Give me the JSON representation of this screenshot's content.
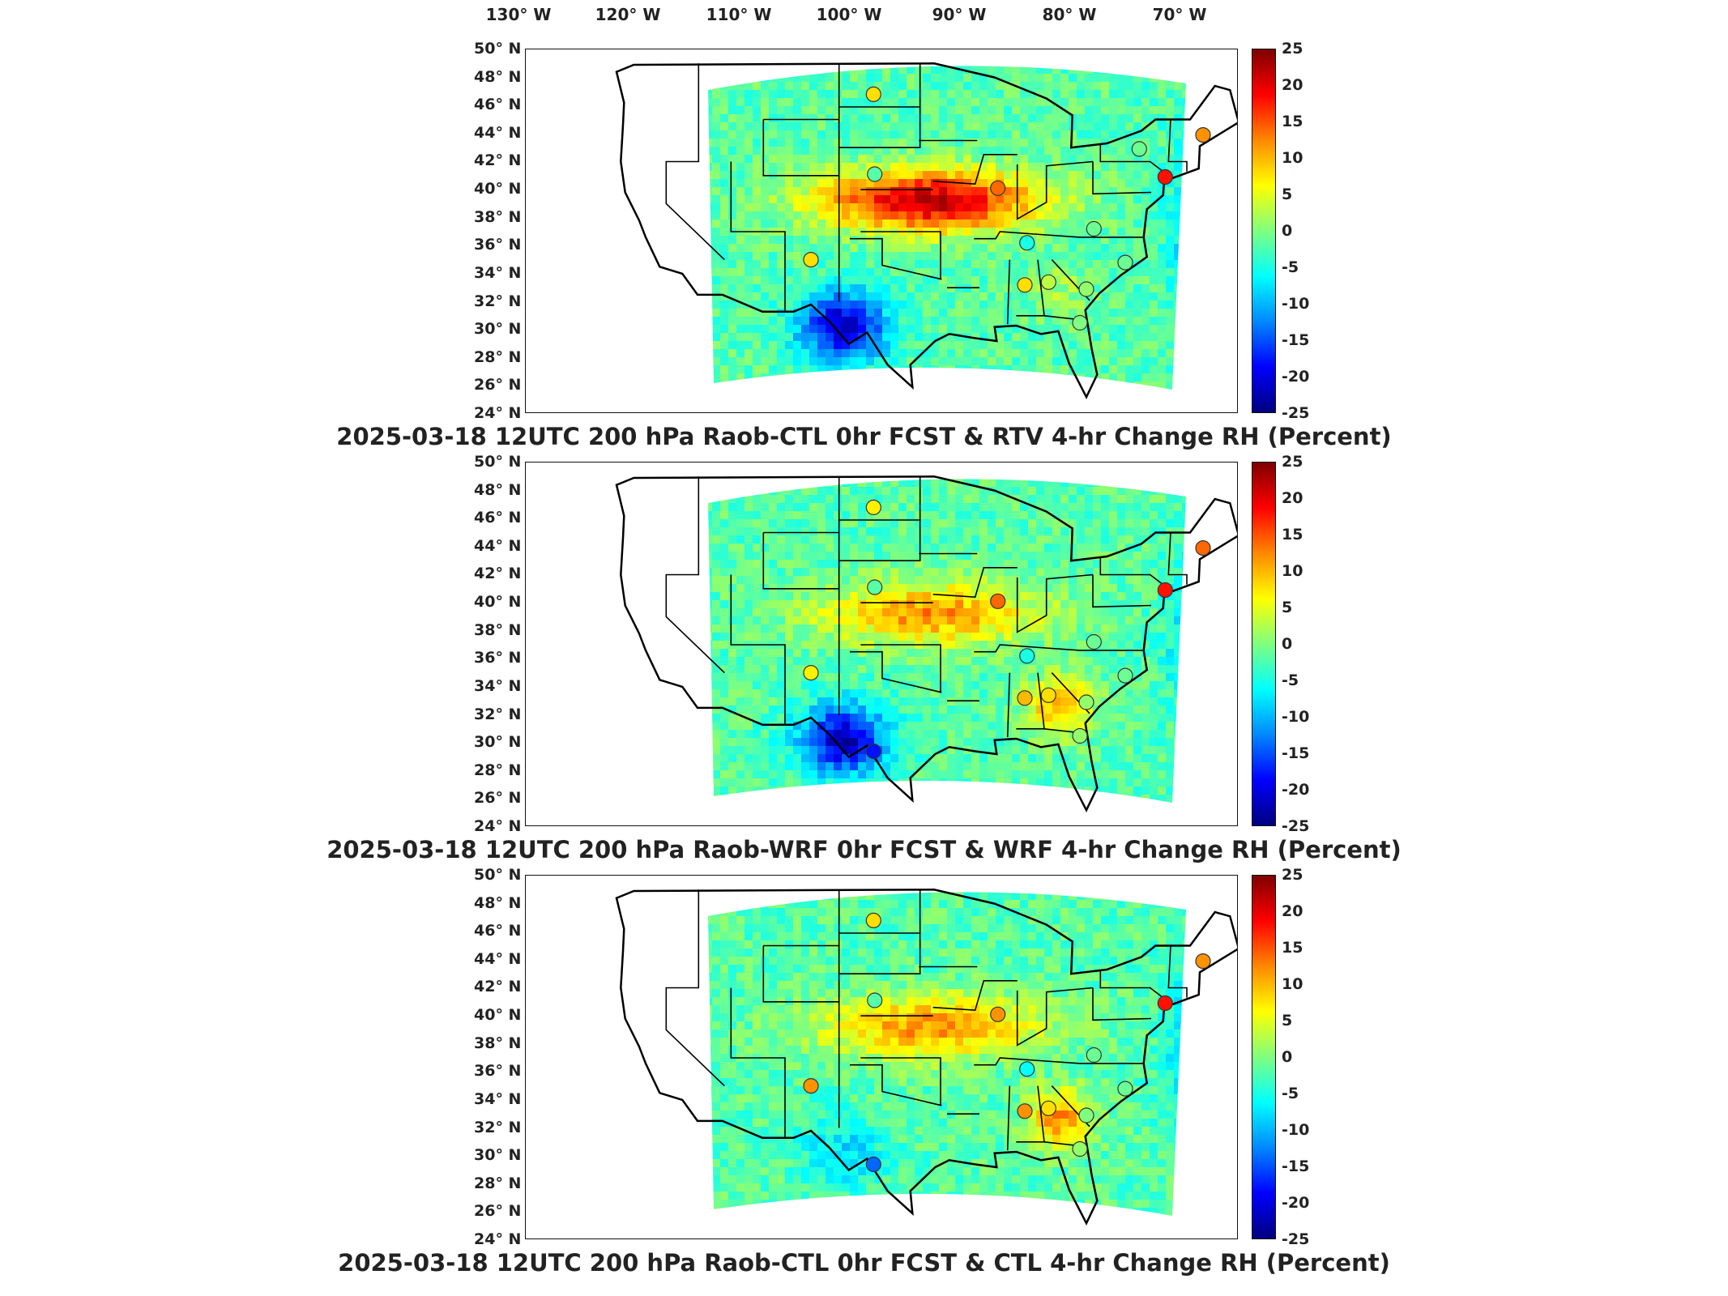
{
  "lon_ticks": [
    "130° W",
    "120° W",
    "110° W",
    "100° W",
    "90° W",
    "80° W",
    "70° W"
  ],
  "lat_ticks": [
    "50° N",
    "48° N",
    "46° N",
    "44° N",
    "42° N",
    "40° N",
    "38° N",
    "36° N",
    "34° N",
    "32° N",
    "30° N",
    "28° N",
    "26° N",
    "24° N"
  ],
  "colorbar_ticks": [
    "25",
    "20",
    "15",
    "10",
    "5",
    "0",
    "-5",
    "-10",
    "-15",
    "-20",
    "-25"
  ],
  "colors": {
    "positive_max": "#7f0000",
    "zero": "#7fff7f",
    "negative_max": "#00007f",
    "border": "#111111",
    "title": "#222222"
  },
  "chart_data": [
    {
      "type": "heatmap",
      "title": "2025-03-18 12UTC 200 hPa Raob-CTL 0hr FCST & RTV 4-hr Change RH (Percent)",
      "colorbar_range": [
        -25,
        25
      ],
      "x_axis": "longitude",
      "y_axis": "latitude",
      "xlim": [
        -133,
        -67
      ],
      "ylim": [
        24,
        50
      ],
      "stations": [
        {
          "lon": -100.8,
          "lat": 46.8,
          "value": 8
        },
        {
          "lon": -100.7,
          "lat": 41.1,
          "value": -2
        },
        {
          "lon": -89.3,
          "lat": 40.1,
          "value": 14
        },
        {
          "lon": -106.6,
          "lat": 35.0,
          "value": 8
        },
        {
          "lon": -86.6,
          "lat": 36.2,
          "value": -5
        },
        {
          "lon": -86.8,
          "lat": 33.2,
          "value": 8
        },
        {
          "lon": -84.6,
          "lat": 33.4,
          "value": 3
        },
        {
          "lon": -80.4,
          "lat": 37.2,
          "value": -1
        },
        {
          "lon": -81.1,
          "lat": 32.9,
          "value": 1
        },
        {
          "lon": -77.5,
          "lat": 34.8,
          "value": -1
        },
        {
          "lon": -81.7,
          "lat": 30.5,
          "value": 0
        },
        {
          "lon": -70.3,
          "lat": 43.9,
          "value": 12
        },
        {
          "lon": -73.8,
          "lat": 40.9,
          "value": 18
        },
        {
          "lon": -76.2,
          "lat": 42.9,
          "value": -1
        }
      ]
    },
    {
      "type": "heatmap",
      "title": "2025-03-18 12UTC 200 hPa Raob-WRF 0hr FCST & WRF 4-hr Change RH (Percent)",
      "colorbar_range": [
        -25,
        25
      ],
      "x_axis": "longitude",
      "y_axis": "latitude",
      "xlim": [
        -133,
        -67
      ],
      "ylim": [
        24,
        50
      ],
      "stations": [
        {
          "lon": -100.8,
          "lat": 46.8,
          "value": 7
        },
        {
          "lon": -100.7,
          "lat": 41.1,
          "value": -2
        },
        {
          "lon": -89.3,
          "lat": 40.1,
          "value": 14
        },
        {
          "lon": -106.6,
          "lat": 35.0,
          "value": 7
        },
        {
          "lon": -86.6,
          "lat": 36.2,
          "value": -5
        },
        {
          "lon": -86.8,
          "lat": 33.2,
          "value": 10
        },
        {
          "lon": -84.6,
          "lat": 33.4,
          "value": 8
        },
        {
          "lon": -80.4,
          "lat": 37.2,
          "value": -1
        },
        {
          "lon": -81.1,
          "lat": 32.9,
          "value": 1
        },
        {
          "lon": -77.5,
          "lat": 34.8,
          "value": -1
        },
        {
          "lon": -81.7,
          "lat": 30.5,
          "value": 1
        },
        {
          "lon": -70.3,
          "lat": 43.9,
          "value": 14
        },
        {
          "lon": -73.8,
          "lat": 40.9,
          "value": 18
        },
        {
          "lon": -100.8,
          "lat": 29.4,
          "value": -18
        }
      ]
    },
    {
      "type": "heatmap",
      "title": "2025-03-18 12UTC 200 hPa Raob-CTL 0hr FCST & CTL 4-hr Change RH (Percent)",
      "colorbar_range": [
        -25,
        25
      ],
      "x_axis": "longitude",
      "y_axis": "latitude",
      "xlim": [
        -133,
        -67
      ],
      "ylim": [
        24,
        50
      ],
      "stations": [
        {
          "lon": -100.8,
          "lat": 46.8,
          "value": 8
        },
        {
          "lon": -100.7,
          "lat": 41.1,
          "value": -2
        },
        {
          "lon": -89.3,
          "lat": 40.1,
          "value": 12
        },
        {
          "lon": -106.6,
          "lat": 35.0,
          "value": 12
        },
        {
          "lon": -86.6,
          "lat": 36.2,
          "value": -6
        },
        {
          "lon": -86.8,
          "lat": 33.2,
          "value": 12
        },
        {
          "lon": -84.6,
          "lat": 33.4,
          "value": 8
        },
        {
          "lon": -80.4,
          "lat": 37.2,
          "value": -1
        },
        {
          "lon": -81.1,
          "lat": 32.9,
          "value": 0
        },
        {
          "lon": -77.5,
          "lat": 34.8,
          "value": -1
        },
        {
          "lon": -81.7,
          "lat": 30.5,
          "value": 1
        },
        {
          "lon": -70.3,
          "lat": 43.9,
          "value": 12
        },
        {
          "lon": -73.8,
          "lat": 40.9,
          "value": 18
        },
        {
          "lon": -100.8,
          "lat": 29.4,
          "value": -14
        }
      ]
    }
  ]
}
